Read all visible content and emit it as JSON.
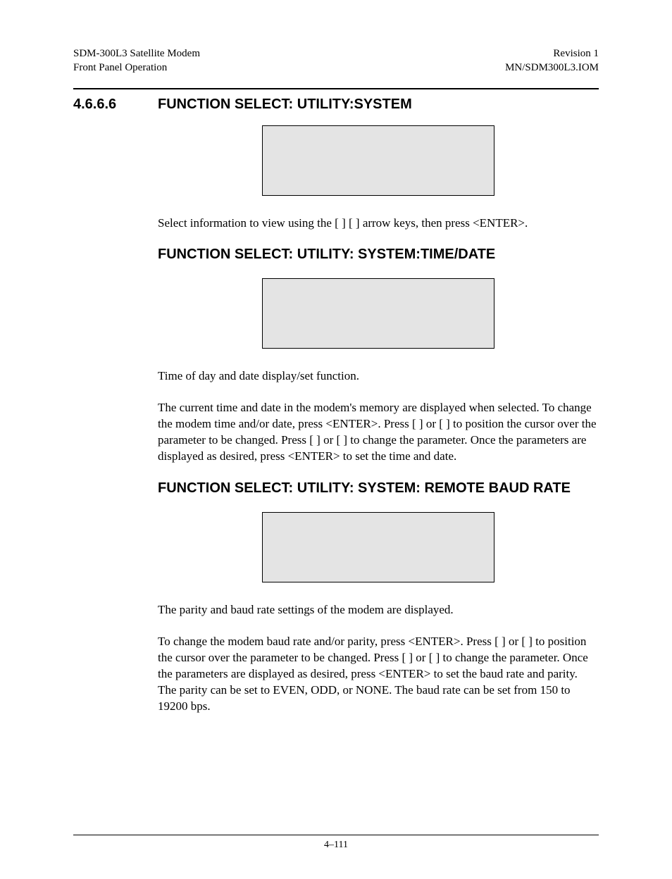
{
  "header": {
    "left_line1": "SDM-300L3 Satellite Modem",
    "left_line2": "Front Panel Operation",
    "right_line1": "Revision 1",
    "right_line2": "MN/SDM300L3.IOM"
  },
  "section": {
    "number": "4.6.6.6",
    "title": "FUNCTION SELECT: UTILITY:SYSTEM",
    "intro_para": "Select information to view using the [    ] [    ] arrow keys, then press <ENTER>."
  },
  "sub1": {
    "title": "FUNCTION SELECT: UTILITY: SYSTEM:TIME/DATE",
    "para1": "Time of day and date display/set function.",
    "para2": "The current time and date in the modem's memory are displayed when selected. To change the modem time and/or date, press <ENTER>. Press [    ] or [    ] to position the cursor over the parameter to be changed. Press [   ] or [   ] to change the parameter. Once the parameters are displayed as desired, press <ENTER> to set the time and date."
  },
  "sub2": {
    "title": "FUNCTION SELECT: UTILITY: SYSTEM: REMOTE BAUD RATE",
    "para1": " The parity and baud rate settings of the modem are displayed.",
    "para2": "To change the modem baud rate and/or parity, press <ENTER>. Press [    ] or [    ] to position the cursor over the parameter to be changed. Press [   ] or [   ] to change the parameter. Once the parameters are displayed as desired, press <ENTER> to set the baud rate and parity. The parity can be set to EVEN, ODD, or NONE. The baud rate can be set from 150 to 19200 bps."
  },
  "footer": {
    "page": "4–111"
  }
}
